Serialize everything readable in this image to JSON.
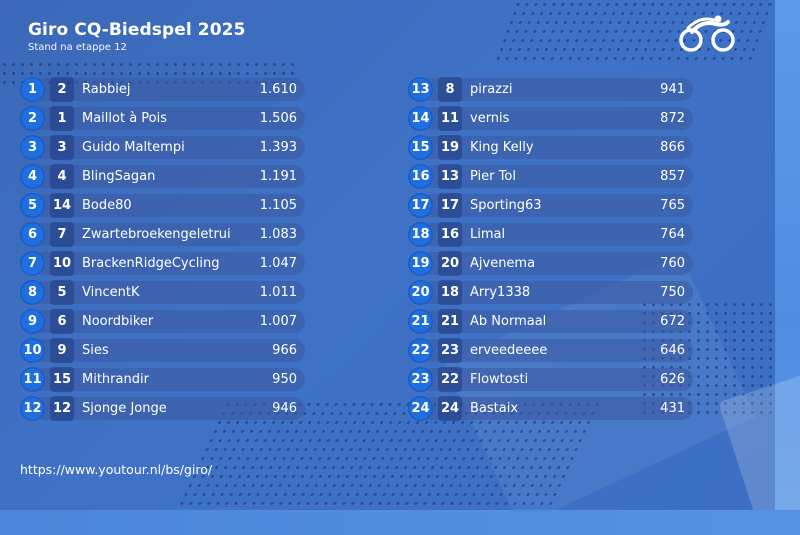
{
  "header": {
    "title": "Giro CQ-Biedspel 2025",
    "subtitle": "Stand na etappe 12",
    "logo_icon": "cyclist-logo-icon"
  },
  "colors": {
    "background": "#3f72c6",
    "rank_badge": "#1f6fe0",
    "text": "#ffffff"
  },
  "standings_left": [
    {
      "rank": "1",
      "prev": "2",
      "name": "Rabbiej",
      "points": "1.610"
    },
    {
      "rank": "2",
      "prev": "1",
      "name": "Maillot à Pois",
      "points": "1.506"
    },
    {
      "rank": "3",
      "prev": "3",
      "name": "Guido Maltempi",
      "points": "1.393"
    },
    {
      "rank": "4",
      "prev": "4",
      "name": "BlingSagan",
      "points": "1.191"
    },
    {
      "rank": "5",
      "prev": "14",
      "name": "Bode80",
      "points": "1.105"
    },
    {
      "rank": "6",
      "prev": "7",
      "name": "Zwartebroekengeletrui",
      "points": "1.083"
    },
    {
      "rank": "7",
      "prev": "10",
      "name": "BrackenRidgeCycling",
      "points": "1.047"
    },
    {
      "rank": "8",
      "prev": "5",
      "name": "VincentK",
      "points": "1.011"
    },
    {
      "rank": "9",
      "prev": "6",
      "name": "Noordbiker",
      "points": "1.007"
    },
    {
      "rank": "10",
      "prev": "9",
      "name": "Sies",
      "points": "966"
    },
    {
      "rank": "11",
      "prev": "15",
      "name": "Mithrandir",
      "points": "950"
    },
    {
      "rank": "12",
      "prev": "12",
      "name": "Sjonge Jonge",
      "points": "946"
    }
  ],
  "standings_right": [
    {
      "rank": "13",
      "prev": "8",
      "name": "pirazzi",
      "points": "941"
    },
    {
      "rank": "14",
      "prev": "11",
      "name": "vernis",
      "points": "872"
    },
    {
      "rank": "15",
      "prev": "19",
      "name": "King Kelly",
      "points": "866"
    },
    {
      "rank": "16",
      "prev": "13",
      "name": "Pier Tol",
      "points": "857"
    },
    {
      "rank": "17",
      "prev": "17",
      "name": "Sporting63",
      "points": "765"
    },
    {
      "rank": "18",
      "prev": "16",
      "name": "Limal",
      "points": "764"
    },
    {
      "rank": "19",
      "prev": "20",
      "name": "Ajvenema",
      "points": "760"
    },
    {
      "rank": "20",
      "prev": "18",
      "name": "Arry1338",
      "points": "750"
    },
    {
      "rank": "21",
      "prev": "21",
      "name": "Ab Normaal",
      "points": "672"
    },
    {
      "rank": "22",
      "prev": "23",
      "name": "erveedeeee",
      "points": "646"
    },
    {
      "rank": "23",
      "prev": "22",
      "name": "Flowtosti",
      "points": "626"
    },
    {
      "rank": "24",
      "prev": "24",
      "name": "Bastaix",
      "points": "431"
    }
  ],
  "footer": {
    "url": "https://www.youtour.nl/bs/giro/"
  }
}
